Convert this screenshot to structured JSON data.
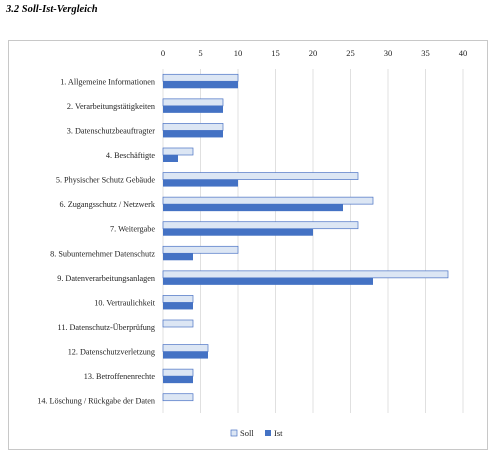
{
  "page": {
    "heading": "3.2 Soll-Ist-Vergleich"
  },
  "colors": {
    "soll_fill": "#dce6f4",
    "soll_stroke": "#4a72c4",
    "ist_fill": "#4472c4",
    "gridline": "#d9d9d9",
    "frame": "#c8c8c8"
  },
  "chart_data": {
    "type": "bar",
    "orientation": "horizontal",
    "categories": [
      "1. Allgemeine Informationen",
      "2. Verarbeitungstätigkeiten",
      "3. Datenschutzbeauftragter",
      "4. Beschäftigte",
      "5. Physischer Schutz Gebäude",
      "6. Zugangsschutz / Netzwerk",
      "7. Weitergabe",
      "8. Subunternehmer Datenschutz",
      "9. Datenverarbeitungsanlagen",
      "10. Vertraulichkeit",
      "11. Datenschutz-Überprüfung",
      "12. Datenschutzverletzung",
      "13. Betroffenenrechte",
      "14. Löschung / Rückgabe der Daten"
    ],
    "series": [
      {
        "name": "Soll",
        "values": [
          10,
          8,
          8,
          4,
          26,
          28,
          26,
          10,
          38,
          4,
          4,
          6,
          4,
          4
        ]
      },
      {
        "name": "Ist",
        "values": [
          10,
          8,
          8,
          2,
          10,
          24,
          20,
          4,
          28,
          4,
          0,
          6,
          4,
          0
        ]
      }
    ],
    "x_ticks": [
      0,
      5,
      10,
      15,
      20,
      25,
      30,
      35,
      40
    ],
    "xlim": [
      0,
      40
    ],
    "x_axis_position": "top",
    "grid": true,
    "legend": "bottom",
    "title": "",
    "xlabel": "",
    "ylabel": ""
  }
}
